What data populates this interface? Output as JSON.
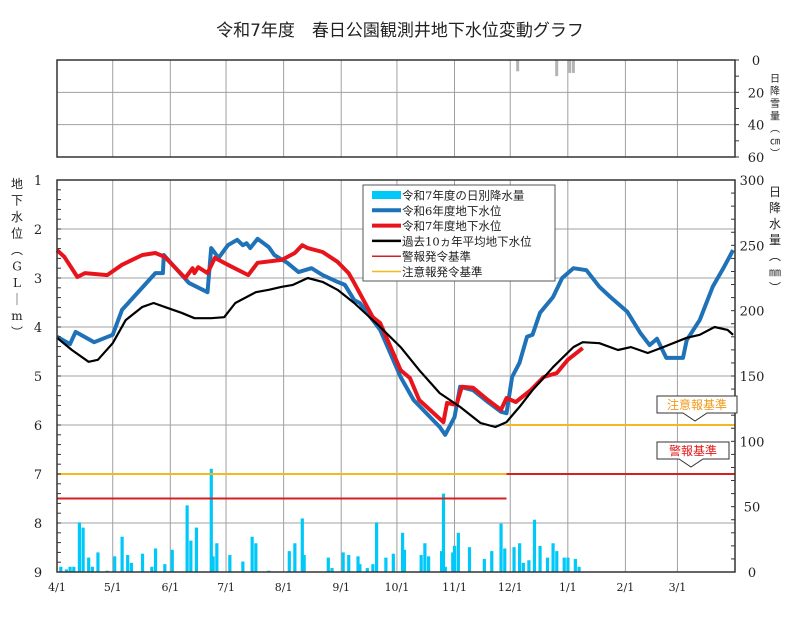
{
  "chart_data": {
    "type": "line",
    "title": "令和7年度　春日公園観測井地下水位変動グラフ",
    "x_ticks": [
      "4/1",
      "5/1",
      "6/1",
      "7/1",
      "8/1",
      "9/1",
      "10/1",
      "11/1",
      "12/1",
      "1/1",
      "2/1",
      "3/1"
    ],
    "x_tick_days": [
      0,
      30,
      61,
      91,
      122,
      153,
      183,
      214,
      244,
      275,
      306,
      334
    ],
    "x_range_days": [
      0,
      365
    ],
    "left_axis": {
      "label_chars": [
        "地",
        "下",
        "水",
        "位",
        "︵",
        "G",
        "L",
        "｜",
        "m",
        "︶"
      ],
      "label": "地下水位（GL－m）",
      "ylim": [
        1,
        9
      ],
      "inverted": true,
      "ticks": [
        "1",
        "2",
        "3",
        "4",
        "5",
        "6",
        "7",
        "8",
        "9"
      ]
    },
    "right_axis": {
      "label_chars": [
        "日",
        "降",
        "水",
        "量",
        "︵",
        "㎜",
        "︶"
      ],
      "label": "日降水量（㎜）",
      "ylim": [
        0,
        300
      ],
      "ticks": [
        "0",
        "50",
        "100",
        "150",
        "200",
        "250",
        "300"
      ]
    },
    "snow_axis": {
      "label_chars": [
        "日",
        "降",
        "雪",
        "量",
        "︵",
        "㎝",
        "︶"
      ],
      "label": "日降雪量（㎝）",
      "ylim": [
        0,
        60
      ],
      "inverted": true,
      "ticks": [
        "0",
        "20",
        "40",
        "60"
      ]
    },
    "legend": [
      {
        "label": "令和7年度の日別降水量",
        "color": "#00c8f8",
        "kind": "bar"
      },
      {
        "label": "令和6年度地下水位",
        "color": "#1f72b8",
        "kind": "thick"
      },
      {
        "label": "令和7年度地下水位",
        "color": "#e8141c",
        "kind": "thick"
      },
      {
        "label": "過去10ヵ年平均地下水位",
        "color": "#000000",
        "kind": "line"
      },
      {
        "label": "警報発令基準",
        "color": "#d42020",
        "kind": "thin"
      },
      {
        "label": "注意報発令基準",
        "color": "#f5b820",
        "kind": "thin"
      }
    ],
    "annotations": {
      "caution": "注意報基準",
      "warning": "警報基準",
      "caution_color": "#f09a18",
      "warning_color": "#e01818"
    },
    "series": [
      {
        "name": "令和6年度地下水位",
        "color": "#1f72b8",
        "points": [
          [
            0,
            4.2
          ],
          [
            7,
            4.35
          ],
          [
            10,
            4.1
          ],
          [
            20,
            4.31
          ],
          [
            30,
            4.16
          ],
          [
            35,
            3.65
          ],
          [
            53,
            2.9
          ],
          [
            57,
            2.9
          ],
          [
            57.5,
            2.53
          ],
          [
            71,
            3.1
          ],
          [
            81,
            3.29
          ],
          [
            83,
            2.39
          ],
          [
            87,
            2.59
          ],
          [
            92,
            2.33
          ],
          [
            97,
            2.22
          ],
          [
            100,
            2.33
          ],
          [
            102,
            2.29
          ],
          [
            104,
            2.39
          ],
          [
            108,
            2.2
          ],
          [
            114,
            2.37
          ],
          [
            117,
            2.53
          ],
          [
            124,
            2.69
          ],
          [
            130,
            2.88
          ],
          [
            137,
            2.8
          ],
          [
            143,
            2.94
          ],
          [
            151,
            3.08
          ],
          [
            155,
            3.14
          ],
          [
            160,
            3.45
          ],
          [
            163,
            3.51
          ],
          [
            174,
            4.06
          ],
          [
            185,
            5.02
          ],
          [
            192,
            5.49
          ],
          [
            206,
            6.04
          ],
          [
            209,
            6.2
          ],
          [
            214,
            5.84
          ],
          [
            217,
            5.22
          ],
          [
            224,
            5.29
          ],
          [
            232,
            5.53
          ],
          [
            239,
            5.73
          ],
          [
            242,
            5.76
          ],
          [
            245,
            5.02
          ],
          [
            249,
            4.73
          ],
          [
            253,
            4.2
          ],
          [
            256,
            4.16
          ],
          [
            260,
            3.71
          ],
          [
            267,
            3.39
          ],
          [
            272,
            3.0
          ],
          [
            278,
            2.8
          ],
          [
            285,
            2.84
          ],
          [
            292,
            3.18
          ],
          [
            298,
            3.39
          ],
          [
            307,
            3.69
          ],
          [
            314,
            4.12
          ],
          [
            319,
            4.37
          ],
          [
            323,
            4.24
          ],
          [
            328,
            4.63
          ],
          [
            337,
            4.63
          ],
          [
            339,
            4.27
          ],
          [
            346,
            3.86
          ],
          [
            353,
            3.18
          ],
          [
            359,
            2.78
          ],
          [
            364,
            2.43
          ]
        ]
      },
      {
        "name": "令和7年度地下水位",
        "color": "#e8141c",
        "points": [
          [
            0,
            2.43
          ],
          [
            4,
            2.57
          ],
          [
            11,
            2.98
          ],
          [
            15,
            2.9
          ],
          [
            27,
            2.94
          ],
          [
            35,
            2.73
          ],
          [
            46,
            2.53
          ],
          [
            53,
            2.49
          ],
          [
            58,
            2.57
          ],
          [
            69,
            3.0
          ],
          [
            73,
            2.8
          ],
          [
            74,
            2.9
          ],
          [
            76,
            2.78
          ],
          [
            81,
            2.9
          ],
          [
            85,
            2.59
          ],
          [
            92,
            2.73
          ],
          [
            103,
            2.94
          ],
          [
            108,
            2.69
          ],
          [
            121,
            2.63
          ],
          [
            128,
            2.49
          ],
          [
            132,
            2.33
          ],
          [
            135,
            2.39
          ],
          [
            143,
            2.47
          ],
          [
            151,
            2.67
          ],
          [
            157,
            2.9
          ],
          [
            160,
            3.1
          ],
          [
            170,
            3.8
          ],
          [
            174,
            3.92
          ],
          [
            185,
            4.88
          ],
          [
            190,
            5.04
          ],
          [
            195,
            5.49
          ],
          [
            208,
            5.94
          ],
          [
            210,
            5.55
          ],
          [
            215,
            5.59
          ],
          [
            218,
            5.22
          ],
          [
            224,
            5.24
          ],
          [
            232,
            5.49
          ],
          [
            239,
            5.69
          ],
          [
            242,
            5.45
          ],
          [
            247,
            5.53
          ],
          [
            255,
            5.29
          ],
          [
            262,
            5.02
          ],
          [
            269,
            4.94
          ],
          [
            275,
            4.67
          ],
          [
            283,
            4.43
          ]
        ]
      },
      {
        "name": "過去10ヵ年平均地下水位",
        "color": "#000000",
        "points": [
          [
            0,
            4.22
          ],
          [
            8,
            4.47
          ],
          [
            17,
            4.71
          ],
          [
            22,
            4.67
          ],
          [
            30,
            4.33
          ],
          [
            37,
            3.86
          ],
          [
            46,
            3.59
          ],
          [
            52,
            3.51
          ],
          [
            58,
            3.59
          ],
          [
            67,
            3.71
          ],
          [
            74,
            3.82
          ],
          [
            83,
            3.82
          ],
          [
            90,
            3.8
          ],
          [
            96,
            3.51
          ],
          [
            107,
            3.29
          ],
          [
            114,
            3.24
          ],
          [
            121,
            3.18
          ],
          [
            127,
            3.14
          ],
          [
            135,
            3.0
          ],
          [
            143,
            3.08
          ],
          [
            151,
            3.24
          ],
          [
            160,
            3.51
          ],
          [
            174,
            4.0
          ],
          [
            185,
            4.41
          ],
          [
            195,
            4.88
          ],
          [
            206,
            5.35
          ],
          [
            217,
            5.63
          ],
          [
            228,
            5.96
          ],
          [
            236,
            6.04
          ],
          [
            242,
            5.94
          ],
          [
            249,
            5.63
          ],
          [
            256,
            5.29
          ],
          [
            267,
            4.82
          ],
          [
            278,
            4.41
          ],
          [
            283,
            4.31
          ],
          [
            292,
            4.33
          ],
          [
            302,
            4.47
          ],
          [
            309,
            4.41
          ],
          [
            318,
            4.53
          ],
          [
            325,
            4.43
          ],
          [
            339,
            4.22
          ],
          [
            346,
            4.16
          ],
          [
            354,
            4.0
          ],
          [
            361,
            4.06
          ],
          [
            364,
            4.16
          ]
        ]
      }
    ],
    "reference_lines": [
      {
        "name": "警報発令基準",
        "color": "#d42020",
        "segments": [
          [
            0,
            242,
            7.5
          ],
          [
            242,
            365,
            7.0
          ]
        ]
      },
      {
        "name": "注意報発令基準",
        "color": "#f5b820",
        "segments": [
          [
            0,
            242,
            7.0
          ],
          [
            242,
            365,
            6.0
          ]
        ]
      }
    ],
    "rainfall": {
      "color": "#00c8f8",
      "bars": [
        [
          2,
          4
        ],
        [
          5,
          2
        ],
        [
          7,
          4
        ],
        [
          9,
          4
        ],
        [
          12,
          38
        ],
        [
          14,
          34
        ],
        [
          17,
          11
        ],
        [
          19,
          4
        ],
        [
          22,
          15
        ],
        [
          27,
          1
        ],
        [
          31,
          12
        ],
        [
          35,
          27
        ],
        [
          38,
          13
        ],
        [
          40,
          7
        ],
        [
          46,
          14
        ],
        [
          51,
          4
        ],
        [
          53,
          18
        ],
        [
          58,
          6
        ],
        [
          62,
          17
        ],
        [
          70,
          51
        ],
        [
          72,
          24
        ],
        [
          75,
          34
        ],
        [
          83,
          79
        ],
        [
          84,
          12
        ],
        [
          86,
          22
        ],
        [
          93,
          13
        ],
        [
          100,
          8
        ],
        [
          105,
          27
        ],
        [
          107,
          22
        ],
        [
          114,
          1
        ],
        [
          125,
          16
        ],
        [
          128,
          22
        ],
        [
          132,
          41
        ],
        [
          133,
          13
        ],
        [
          146,
          11
        ],
        [
          148,
          3
        ],
        [
          154,
          15
        ],
        [
          157,
          13
        ],
        [
          162,
          12
        ],
        [
          163,
          6
        ],
        [
          167,
          3
        ],
        [
          170,
          6
        ],
        [
          172,
          38
        ],
        [
          177,
          11
        ],
        [
          181,
          14
        ],
        [
          186,
          30
        ],
        [
          187,
          17
        ],
        [
          196,
          13
        ],
        [
          198,
          22
        ],
        [
          200,
          12
        ],
        [
          207,
          16
        ],
        [
          208,
          60
        ],
        [
          209,
          4
        ],
        [
          213,
          15
        ],
        [
          214,
          20
        ],
        [
          216,
          30
        ],
        [
          222,
          19
        ],
        [
          230,
          10
        ],
        [
          234,
          16
        ],
        [
          239,
          37
        ],
        [
          241,
          18
        ],
        [
          246,
          19
        ],
        [
          249,
          22
        ],
        [
          251,
          7
        ],
        [
          254,
          9
        ],
        [
          257,
          40
        ],
        [
          260,
          20
        ],
        [
          264,
          11
        ],
        [
          267,
          22
        ],
        [
          269,
          16
        ],
        [
          273,
          11
        ],
        [
          275,
          11
        ],
        [
          279,
          10
        ],
        [
          281,
          4
        ]
      ]
    },
    "snowfall": {
      "color": "#b4b4b4",
      "bars": [
        [
          248,
          7
        ],
        [
          269,
          10
        ],
        [
          276,
          8
        ],
        [
          278,
          8
        ]
      ]
    }
  }
}
